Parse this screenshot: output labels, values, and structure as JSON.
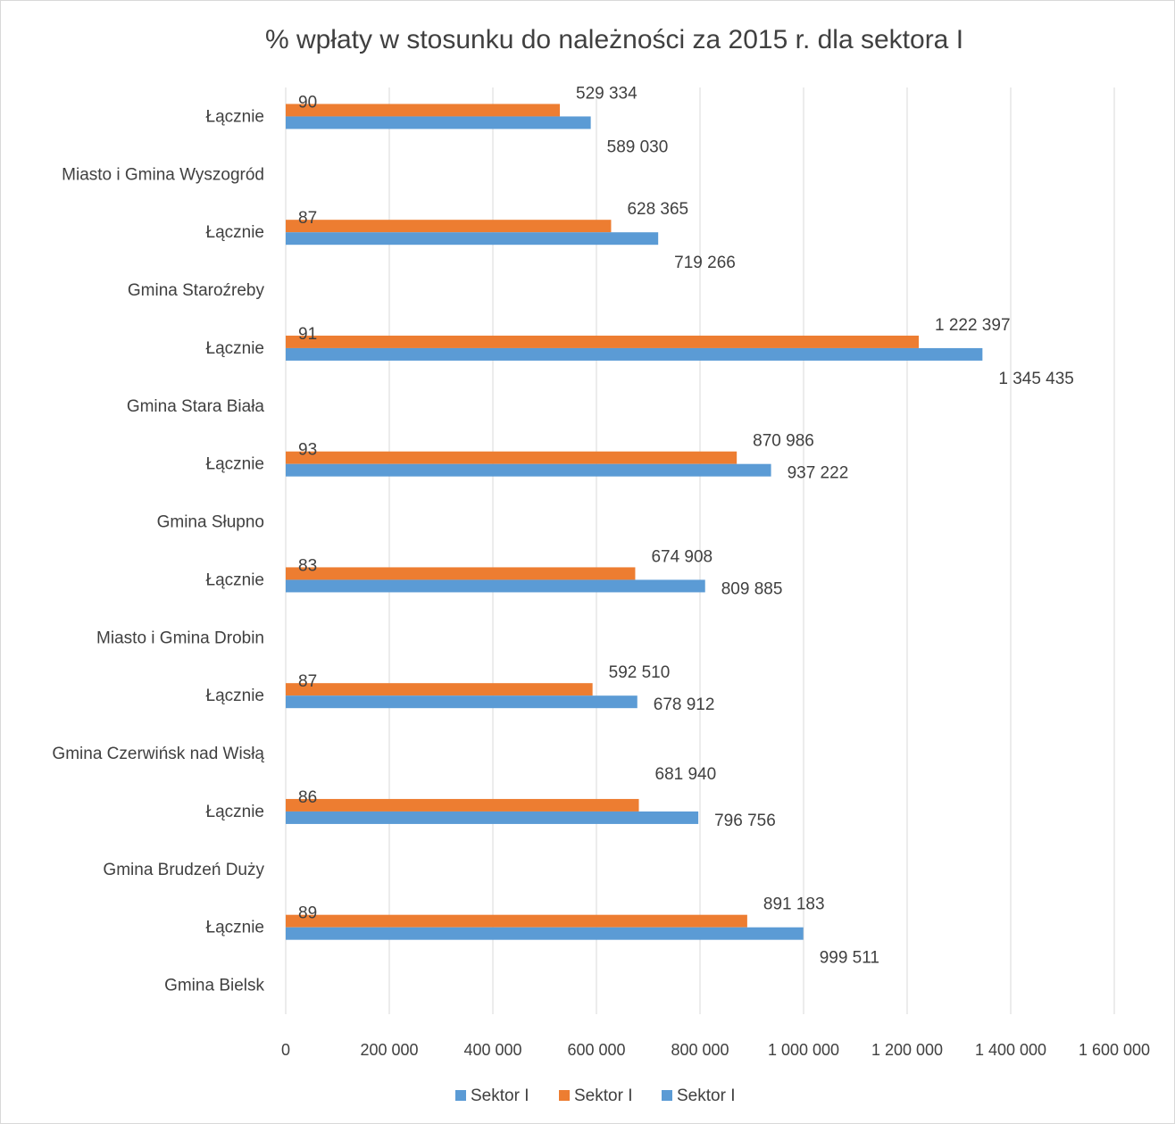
{
  "chart_data": {
    "type": "bar",
    "orientation": "horizontal",
    "title": "% wpłaty w stosunku do należności za 2015 r. dla sektora I",
    "xlim": [
      0,
      1600000
    ],
    "x_ticks": [
      "0",
      "200 000",
      "400 000",
      "600 000",
      "800 000",
      "1 000 000",
      "1 200 000",
      "1 400 000",
      "1 600 000"
    ],
    "grid": true,
    "legend_position": "bottom",
    "colors": {
      "orange": "#ED7D31",
      "blue": "#5B9BD5"
    },
    "legend": [
      "Sektor I",
      "Sektor I",
      "Sektor I"
    ],
    "categories": [
      {
        "group": "Gmina Bielsk",
        "label": "Łącznie",
        "percent": 89,
        "paid": 891183,
        "paid_label": "891 183",
        "due": 999511,
        "due_label": "999 511"
      },
      {
        "group": "Gmina Brudzeń Duży",
        "label": "Łącznie",
        "percent": 86,
        "paid": 681940,
        "paid_label": "681 940",
        "due": 796756,
        "due_label": "796 756"
      },
      {
        "group": "Gmina Czerwińsk nad Wisłą",
        "label": "Łącznie",
        "percent": 87,
        "paid": 592510,
        "paid_label": "592 510",
        "due": 678912,
        "due_label": "678 912"
      },
      {
        "group": "Miasto i Gmina Drobin",
        "label": "Łącznie",
        "percent": 83,
        "paid": 674908,
        "paid_label": "674 908",
        "due": 809885,
        "due_label": "809 885"
      },
      {
        "group": "Gmina Słupno",
        "label": "Łącznie",
        "percent": 93,
        "paid": 870986,
        "paid_label": "870 986",
        "due": 937222,
        "due_label": "937 222"
      },
      {
        "group": "Gmina Stara Biała",
        "label": "Łącznie",
        "percent": 91,
        "paid": 1222397,
        "paid_label": "1 222 397",
        "due": 1345435,
        "due_label": "1 345 435"
      },
      {
        "group": "Gmina Staroźreby",
        "label": "Łącznie",
        "percent": 87,
        "paid": 628365,
        "paid_label": "628 365",
        "due": 719266,
        "due_label": "719 266"
      },
      {
        "group": "Miasto i Gmina Wyszogród",
        "label": "Łącznie",
        "percent": 90,
        "paid": 529334,
        "paid_label": "529 334",
        "due": 589030,
        "due_label": "589 030"
      }
    ]
  }
}
